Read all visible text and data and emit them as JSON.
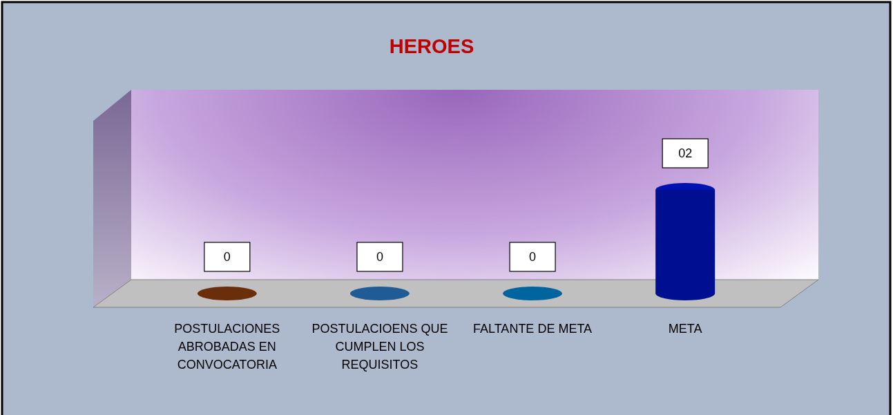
{
  "chart_data": {
    "type": "bar",
    "title": "HEROES",
    "categories": [
      "POSTULACIONES ABROBADAS EN CONVOCATORIA",
      "POSTULACIOENS QUE CUMPLEN LOS REQUISITOS",
      "FALTANTE DE META",
      "META"
    ],
    "values": [
      0,
      0,
      0,
      2
    ],
    "colors": [
      "#6b2e0a",
      "#1f5b94",
      "#00649f",
      "#000f8f"
    ],
    "value_labels": [
      "0",
      "0",
      "0",
      "02"
    ]
  }
}
